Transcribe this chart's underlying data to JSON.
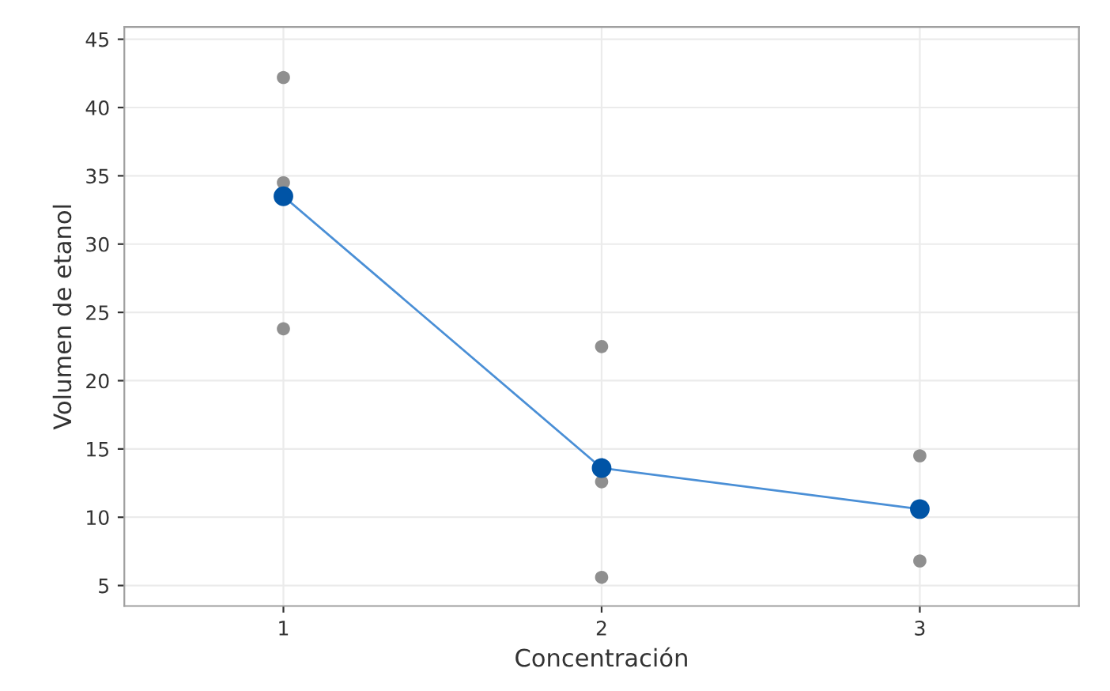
{
  "chart_data": {
    "type": "line",
    "xlabel": "Concentración",
    "ylabel": "Volumen de etanol",
    "categories": [
      "1",
      "2",
      "3"
    ],
    "series": [
      {
        "type": "scatter",
        "color": "#8f8f8f",
        "marker": "circle",
        "x": [
          "1",
          "1",
          "1",
          "2",
          "2",
          "2",
          "3",
          "3"
        ],
        "values": [
          42.2,
          34.5,
          23.8,
          22.5,
          12.6,
          5.6,
          14.5,
          6.8
        ]
      },
      {
        "color": "#4a8fd6",
        "values": [
          33.5,
          13.6,
          10.6
        ]
      },
      {
        "type": "scatter",
        "color": "#0054a6",
        "marker": "circle",
        "x": [
          "1",
          "2",
          "3"
        ],
        "values": [
          33.5,
          13.6,
          10.6
        ]
      }
    ],
    "ylim": [
      3.5,
      45.9
    ],
    "yticks": [
      5,
      10,
      15,
      20,
      25,
      30,
      35,
      40,
      45
    ],
    "grid": true
  }
}
